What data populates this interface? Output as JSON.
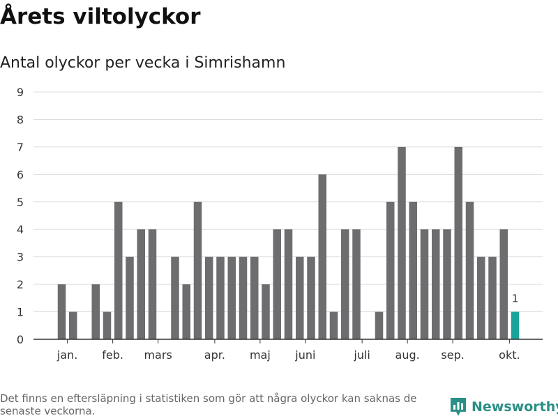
{
  "title": "Årets viltolyckor",
  "subtitle": "Antal olyckor per vecka i Simrishamn",
  "footnote": "Det finns en eftersläpning i statistiken som gör att några olyckor kan saknas de senaste veckorna.",
  "brand": {
    "name": "Newsworthy",
    "icon": "bar-chart-logo-icon",
    "color": "#2a8f86"
  },
  "colors": {
    "bar": "#6d6d70",
    "highlight": "#1aa39a",
    "grid": "#dddddd",
    "axis": "#333333"
  },
  "chart_data": {
    "type": "bar",
    "x": [
      1,
      2,
      3,
      4,
      5,
      6,
      7,
      8,
      9,
      10,
      11,
      12,
      13,
      14,
      15,
      16,
      17,
      18,
      19,
      20,
      21,
      22,
      23,
      24,
      25,
      26,
      27,
      28,
      29,
      30,
      31,
      32,
      33,
      34,
      35,
      36,
      37,
      38,
      39,
      40,
      41
    ],
    "values": [
      2,
      1,
      0,
      2,
      1,
      5,
      3,
      4,
      4,
      0,
      3,
      2,
      5,
      3,
      3,
      3,
      3,
      3,
      2,
      4,
      4,
      3,
      3,
      6,
      1,
      4,
      4,
      0,
      1,
      5,
      7,
      5,
      4,
      4,
      4,
      7,
      5,
      3,
      3,
      4,
      1
    ],
    "highlight_index": 40,
    "highlight_label": "1",
    "ylim": [
      0,
      9
    ],
    "yticks": [
      0,
      1,
      2,
      3,
      4,
      5,
      6,
      7,
      8,
      9
    ],
    "month_ticks": [
      {
        "label": "jan.",
        "x": 1.5
      },
      {
        "label": "feb.",
        "x": 5.5
      },
      {
        "label": "mars",
        "x": 9.5
      },
      {
        "label": "apr.",
        "x": 14.5
      },
      {
        "label": "maj",
        "x": 18.5
      },
      {
        "label": "juni",
        "x": 22.5
      },
      {
        "label": "juli",
        "x": 27.5
      },
      {
        "label": "aug.",
        "x": 31.5
      },
      {
        "label": "sep.",
        "x": 35.5
      },
      {
        "label": "okt.",
        "x": 40.5
      }
    ],
    "grid": true
  }
}
